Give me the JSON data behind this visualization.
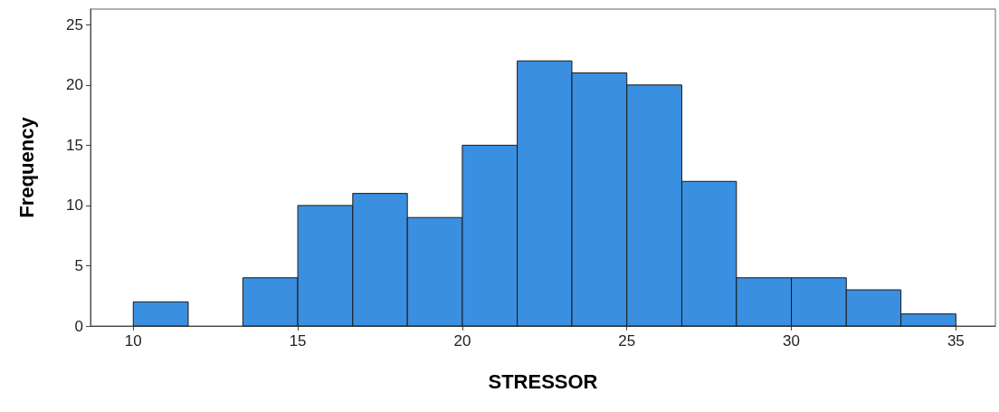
{
  "chart_data": {
    "type": "histogram",
    "xlabel": "STRESSOR",
    "ylabel": "Frequency",
    "bins": [
      10,
      11.67,
      13.33,
      15,
      16.67,
      18.33,
      20,
      21.67,
      23.33,
      25,
      26.67,
      28.33,
      30,
      31.67,
      33.33,
      35
    ],
    "values": [
      2,
      0,
      4,
      10,
      11,
      9,
      15,
      22,
      21,
      20,
      12,
      4,
      4,
      3,
      1
    ],
    "color": "#3a8fe0",
    "xlim": [
      8.7,
      36.2
    ],
    "xticks": [
      10,
      15,
      20,
      25,
      30,
      35
    ],
    "ylim": [
      0,
      26.3
    ],
    "yticks": [
      0,
      5,
      10,
      15,
      20,
      25
    ],
    "grid": false
  }
}
